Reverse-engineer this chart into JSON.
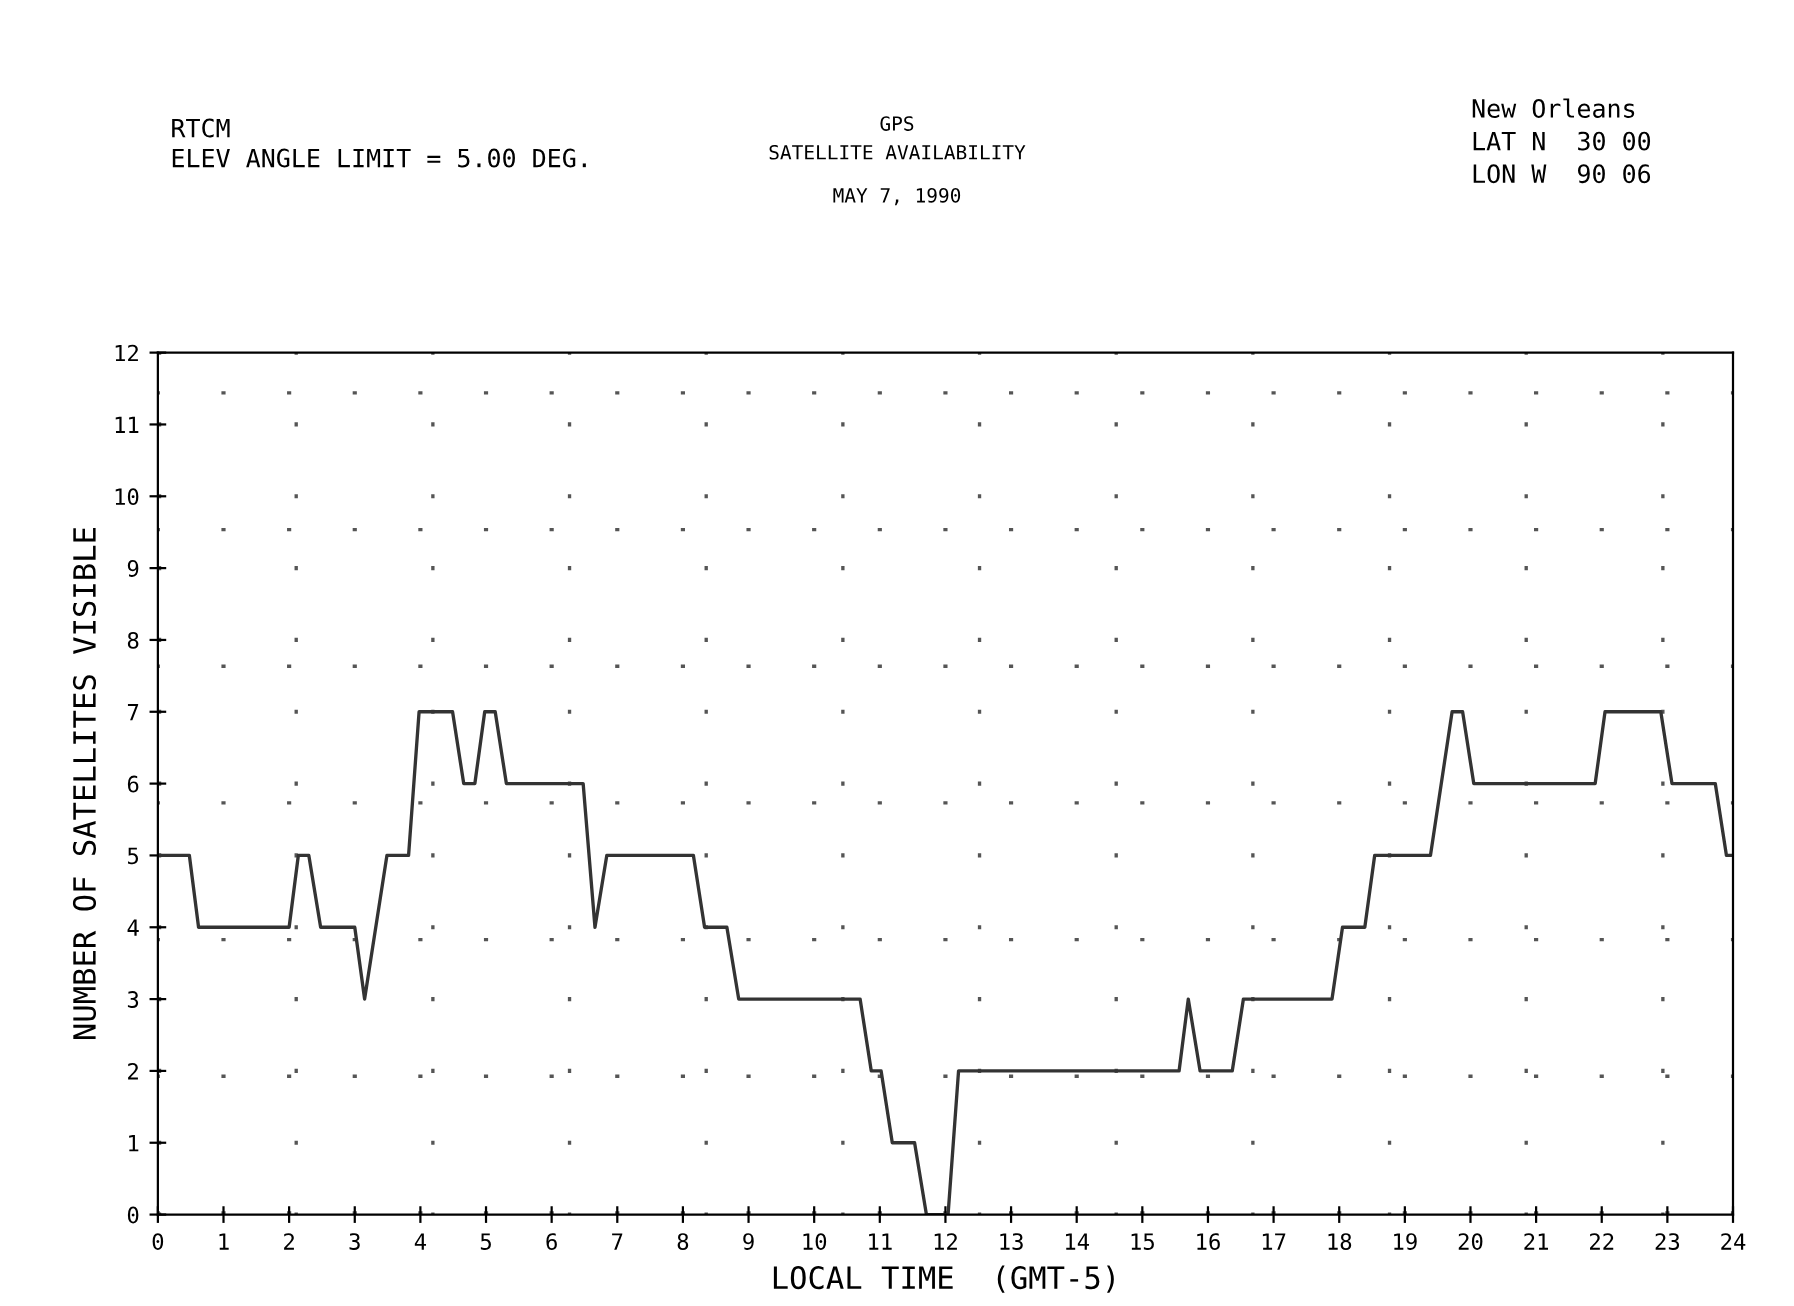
{
  "chart_data": {
    "type": "line",
    "title": "GPS",
    "subtitle": "SATELLITE AVAILABILITY",
    "annotations": [
      "MAY 7, 1990",
      "RTCM",
      "ELEV ANGLE LIMIT = 5.00 DEG.",
      "New Orleans",
      "LAT N  30 00",
      "LON W  90 06"
    ],
    "xlabel": "LOCAL TIME  (GMT-5)",
    "ylabel": "NUMBER OF SATELLITES VISIBLE",
    "series": [
      {
        "color": "#333333",
        "x": [
          0,
          0.48,
          0.62,
          2.0,
          2.14,
          2.3,
          2.48,
          3.0,
          3.15,
          3.49,
          3.82,
          3.98,
          4.49,
          4.66,
          4.83,
          4.98,
          5.14,
          5.31,
          6.48,
          6.66,
          6.84,
          8.16,
          8.33,
          8.67,
          8.85,
          10.7,
          10.87,
          11.02,
          11.19,
          11.53,
          11.71,
          12.04,
          12.2,
          15.56,
          15.7,
          15.88,
          16.37,
          16.54,
          17.89,
          18.05,
          18.39,
          18.54,
          19.39,
          19.72,
          19.88,
          20.05,
          21.9,
          22.05,
          22.9,
          23.07,
          23.73,
          23.9,
          24
        ],
        "values": [
          5,
          5,
          4,
          4,
          5,
          5,
          4,
          4,
          3,
          5,
          5,
          7,
          7,
          6,
          6,
          7,
          7,
          6,
          6,
          4,
          5,
          5,
          4,
          4,
          3,
          3,
          2,
          2,
          1,
          1,
          0,
          0,
          2,
          2,
          3,
          2,
          2,
          3,
          3,
          4,
          4,
          5,
          5,
          7,
          7,
          6,
          6,
          7,
          7,
          6,
          6,
          5,
          5
        ]
      }
    ],
    "xlim": [
      0,
      24
    ],
    "ylim": [
      0,
      12
    ],
    "xticks": [
      0,
      1,
      2,
      3,
      4,
      5,
      6,
      7,
      8,
      9,
      10,
      11,
      12,
      13,
      14,
      15,
      16,
      17,
      18,
      19,
      20,
      21,
      22,
      23,
      24
    ],
    "yticks": [
      0,
      1,
      2,
      3,
      4,
      5,
      6,
      7,
      8,
      9,
      10,
      11,
      12
    ],
    "grid": true,
    "marker": "none",
    "line_style": "solid"
  }
}
